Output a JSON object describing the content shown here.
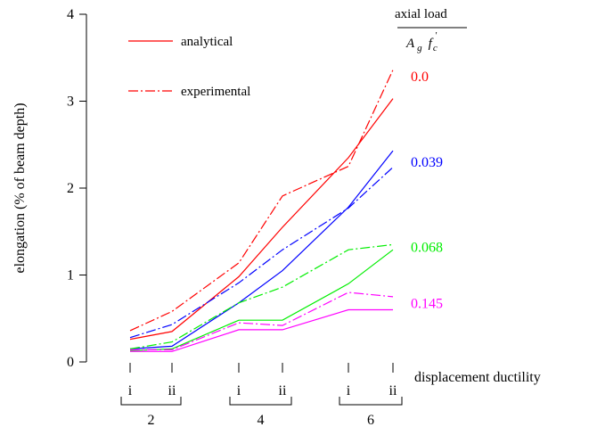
{
  "chart_data": {
    "type": "line",
    "title": "",
    "xlabel": "displacement ductility",
    "ylabel": "elongation (% of beam depth)",
    "ylim": [
      0,
      4
    ],
    "yticks": [
      "0",
      "1",
      "2",
      "3",
      "4"
    ],
    "x_cycle_labels": [
      "i",
      "ii",
      "i",
      "ii",
      "i",
      "ii"
    ],
    "x_group_labels": [
      "2",
      "4",
      "6"
    ],
    "grid": false,
    "legend": {
      "position": "top-left",
      "entries": [
        {
          "label": "analytical",
          "style": "solid"
        },
        {
          "label": "experimental",
          "style": "dashdot"
        }
      ]
    },
    "axial_load_header": {
      "line1": "axial load",
      "denom_A": "A",
      "denom_g": "g",
      "denom_f": "f",
      "denom_c": "c",
      "denom_prime": "'"
    },
    "series": [
      {
        "name": "0.0",
        "color": "#ff0000",
        "kind": "analytical",
        "values": [
          0.26,
          0.35,
          0.98,
          1.55,
          2.35,
          3.03
        ]
      },
      {
        "name": "0.0",
        "color": "#ff0000",
        "kind": "experimental",
        "values": [
          0.36,
          0.58,
          1.14,
          1.91,
          2.25,
          3.36
        ]
      },
      {
        "name": "0.039",
        "color": "#0000ff",
        "kind": "analytical",
        "values": [
          0.15,
          0.18,
          0.68,
          1.05,
          1.78,
          2.43
        ]
      },
      {
        "name": "0.039",
        "color": "#0000ff",
        "kind": "experimental",
        "values": [
          0.28,
          0.43,
          0.91,
          1.29,
          1.77,
          2.24
        ]
      },
      {
        "name": "0.068",
        "color": "#00ee00",
        "kind": "analytical",
        "values": [
          0.13,
          0.15,
          0.48,
          0.48,
          0.9,
          1.29
        ]
      },
      {
        "name": "0.068",
        "color": "#00ee00",
        "kind": "experimental",
        "values": [
          0.15,
          0.23,
          0.68,
          0.86,
          1.29,
          1.35
        ]
      },
      {
        "name": "0.145",
        "color": "#ff00ff",
        "kind": "analytical",
        "values": [
          0.12,
          0.12,
          0.37,
          0.37,
          0.6,
          0.6
        ]
      },
      {
        "name": "0.145",
        "color": "#ff00ff",
        "kind": "experimental",
        "values": [
          0.14,
          0.14,
          0.45,
          0.42,
          0.8,
          0.75
        ]
      }
    ],
    "series_labels": [
      {
        "text": "0.0",
        "color": "#ff0000",
        "y": 3.28
      },
      {
        "text": "0.039",
        "color": "#0000ff",
        "y": 2.3
      },
      {
        "text": "0.068",
        "color": "#00ee00",
        "y": 1.32
      },
      {
        "text": "0.145",
        "color": "#ff00ff",
        "y": 0.67
      }
    ]
  }
}
